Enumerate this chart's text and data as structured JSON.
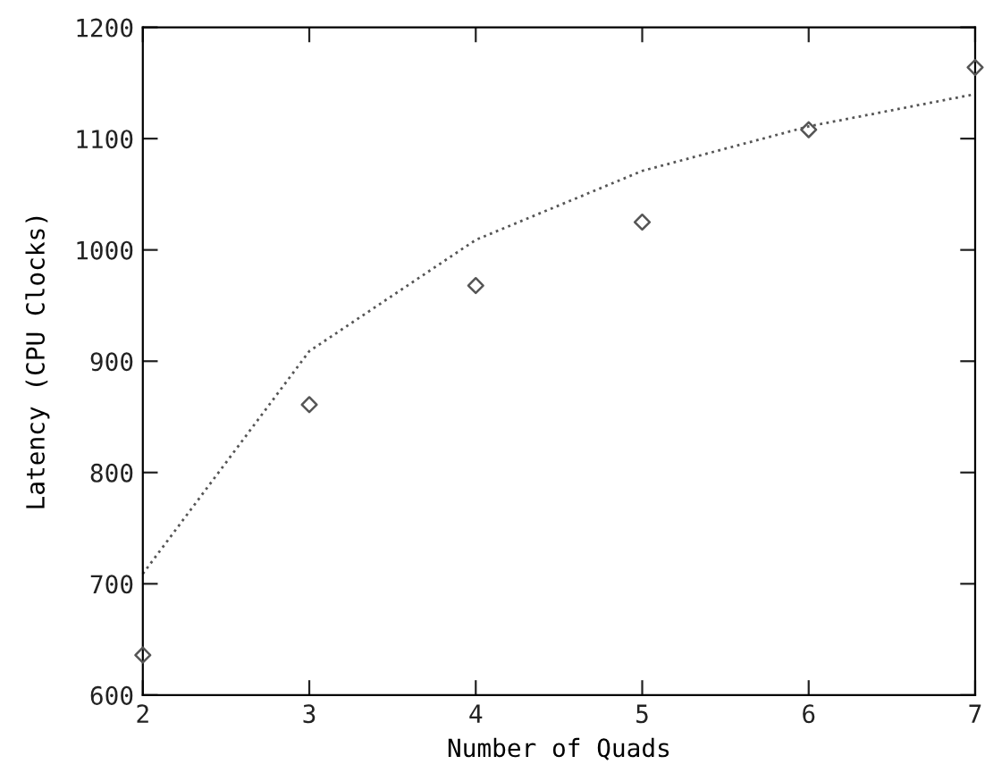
{
  "chart_data": {
    "type": "line",
    "xlabel": "Number of Quads",
    "ylabel": "Latency (CPU Clocks)",
    "xlim": [
      2,
      7
    ],
    "xticks": [
      2,
      3,
      4,
      5,
      6,
      7
    ],
    "ylim": [
      600,
      1200
    ],
    "yticks": [
      600,
      700,
      800,
      900,
      1000,
      1100,
      1200
    ],
    "grid": false,
    "legend": false,
    "series": [
      {
        "x": [
          2,
          3,
          4,
          5,
          6,
          7
        ],
        "values": [
          709,
          909,
          1009,
          1071,
          1111,
          1140
        ],
        "color": "#555555",
        "line_style": "dotted",
        "marker": "none"
      },
      {
        "type": "scatter",
        "x": [
          2,
          3,
          4,
          5,
          6,
          7
        ],
        "values": [
          636,
          861,
          968,
          1025,
          1108,
          1164
        ],
        "color": "#555555",
        "marker": "diamond"
      }
    ]
  }
}
